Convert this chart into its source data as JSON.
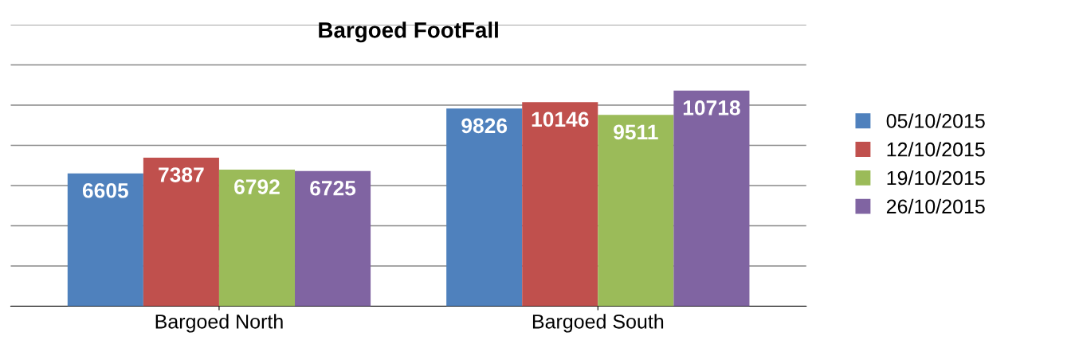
{
  "chart_data": {
    "type": "bar",
    "title": "Bargoed FootFall",
    "categories": [
      "Bargoed North",
      "Bargoed South"
    ],
    "series": [
      {
        "name": "05/10/2015",
        "color": "#4f81bd",
        "values": [
          6605,
          9826
        ]
      },
      {
        "name": "12/10/2015",
        "color": "#c0504d",
        "values": [
          7387,
          10146
        ]
      },
      {
        "name": "19/10/2015",
        "color": "#9bbb59",
        "values": [
          6792,
          9511
        ]
      },
      {
        "name": "26/10/2015",
        "color": "#8064a2",
        "values": [
          6725,
          10718
        ]
      }
    ],
    "ylim": [
      0,
      14000
    ],
    "yticks": [
      {
        "value": 0,
        "label": null
      },
      {
        "value": 2000,
        "label": null
      },
      {
        "value": 4000,
        "label": null
      },
      {
        "value": 6000,
        "label": null
      },
      {
        "value": 8000,
        "label": null
      },
      {
        "value": 10000,
        "label": null
      },
      {
        "value": 12000,
        "label": null
      },
      {
        "value": 14000,
        "label": null
      }
    ],
    "grid": "y",
    "legend": "right",
    "tick_labels": "x",
    "data_labels": true
  }
}
